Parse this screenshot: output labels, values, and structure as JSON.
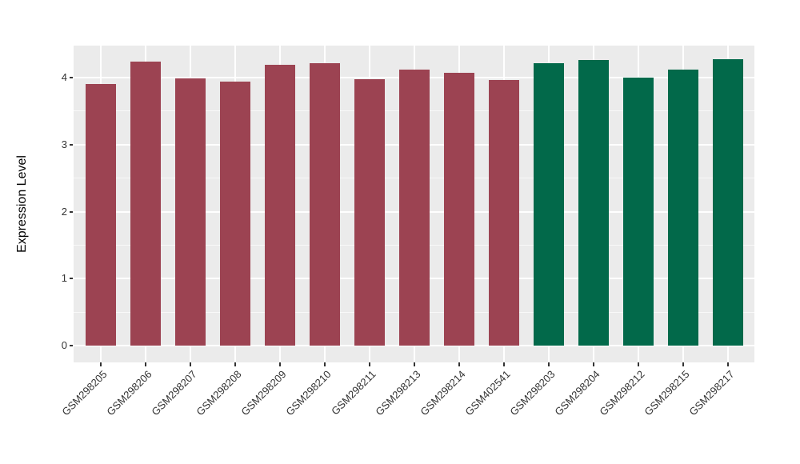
{
  "chart_data": {
    "type": "bar",
    "title": "",
    "xlabel": "",
    "ylabel": "Expression Level",
    "yticks": [
      0,
      1,
      2,
      3,
      4
    ],
    "ylim": [
      -0.25,
      4.48
    ],
    "legend": "none",
    "grid": "major-and-minor-horizontal-plus-major-vertical",
    "panel_background": "#EBEBEB",
    "gridline_color": "#FFFFFF",
    "axis_text_color": "#333333",
    "bars": [
      {
        "label": "GSM298205",
        "value": 3.91,
        "color": "#9C4352"
      },
      {
        "label": "GSM298206",
        "value": 4.24,
        "color": "#9C4352"
      },
      {
        "label": "GSM298207",
        "value": 3.99,
        "color": "#9C4352"
      },
      {
        "label": "GSM298208",
        "value": 3.94,
        "color": "#9C4352"
      },
      {
        "label": "GSM298209",
        "value": 4.19,
        "color": "#9C4352"
      },
      {
        "label": "GSM298210",
        "value": 4.21,
        "color": "#9C4352"
      },
      {
        "label": "GSM298211",
        "value": 3.98,
        "color": "#9C4352"
      },
      {
        "label": "GSM298213",
        "value": 4.12,
        "color": "#9C4352"
      },
      {
        "label": "GSM298214",
        "value": 4.07,
        "color": "#9C4352"
      },
      {
        "label": "GSM402541",
        "value": 3.97,
        "color": "#9C4352"
      },
      {
        "label": "GSM298203",
        "value": 4.22,
        "color": "#02694A"
      },
      {
        "label": "GSM298204",
        "value": 4.26,
        "color": "#02694A"
      },
      {
        "label": "GSM298212",
        "value": 4.0,
        "color": "#02694A"
      },
      {
        "label": "GSM298215",
        "value": 4.12,
        "color": "#02694A"
      },
      {
        "label": "GSM298217",
        "value": 4.27,
        "color": "#02694A"
      }
    ]
  }
}
